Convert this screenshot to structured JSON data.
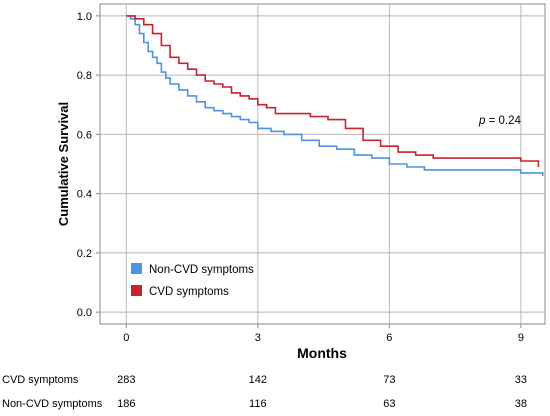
{
  "chart_data": {
    "type": "line",
    "title": "",
    "xlabel": "Months",
    "ylabel": "Cumulative Survival",
    "xlim": [
      -0.6,
      9.55
    ],
    "ylim": [
      -0.04,
      1.04
    ],
    "xticks": [
      "0",
      "3",
      "6",
      "9"
    ],
    "yticks": [
      "0.0",
      "0.2",
      "0.4",
      "0.6",
      "0.8",
      "1.0"
    ],
    "grid": true,
    "legend_position": "bottom-left",
    "annotation": {
      "p_label": "p",
      "p_value_text": " = 0.24"
    },
    "series": [
      {
        "name": "Non-CVD symptoms",
        "color": "#4f94de",
        "x": [
          0,
          0.1,
          0.2,
          0.3,
          0.4,
          0.5,
          0.6,
          0.7,
          0.8,
          0.9,
          1.0,
          1.2,
          1.4,
          1.6,
          1.8,
          2.0,
          2.2,
          2.4,
          2.6,
          2.8,
          3.0,
          3.3,
          3.6,
          4.0,
          4.4,
          4.8,
          5.2,
          5.6,
          6.0,
          6.4,
          6.8,
          9.0,
          9.5
        ],
        "y": [
          1.0,
          0.99,
          0.97,
          0.94,
          0.91,
          0.88,
          0.86,
          0.84,
          0.81,
          0.79,
          0.77,
          0.75,
          0.73,
          0.71,
          0.69,
          0.68,
          0.67,
          0.66,
          0.65,
          0.64,
          0.62,
          0.61,
          0.6,
          0.58,
          0.56,
          0.55,
          0.53,
          0.52,
          0.5,
          0.49,
          0.48,
          0.47,
          0.46
        ]
      },
      {
        "name": "CVD symptoms",
        "color": "#c8222c",
        "x": [
          0,
          0.2,
          0.4,
          0.6,
          0.8,
          1.0,
          1.2,
          1.4,
          1.6,
          1.8,
          2.0,
          2.2,
          2.4,
          2.6,
          2.8,
          3.0,
          3.2,
          3.4,
          3.8,
          4.2,
          4.6,
          5.0,
          5.4,
          5.8,
          6.2,
          6.6,
          7.0,
          8.0,
          9.0,
          9.4
        ],
        "y": [
          1.0,
          0.99,
          0.97,
          0.94,
          0.9,
          0.86,
          0.84,
          0.82,
          0.8,
          0.78,
          0.77,
          0.76,
          0.74,
          0.73,
          0.72,
          0.7,
          0.69,
          0.67,
          0.67,
          0.66,
          0.65,
          0.62,
          0.58,
          0.56,
          0.54,
          0.53,
          0.52,
          0.52,
          0.51,
          0.49
        ]
      }
    ]
  },
  "risk_table": {
    "times": [
      0,
      3,
      6,
      9
    ],
    "rows": [
      {
        "label": "CVD symptoms",
        "values": [
          "283",
          "142",
          "73",
          "33"
        ]
      },
      {
        "label": "Non-CVD symptoms",
        "values": [
          "186",
          "116",
          "63",
          "38"
        ]
      }
    ]
  }
}
